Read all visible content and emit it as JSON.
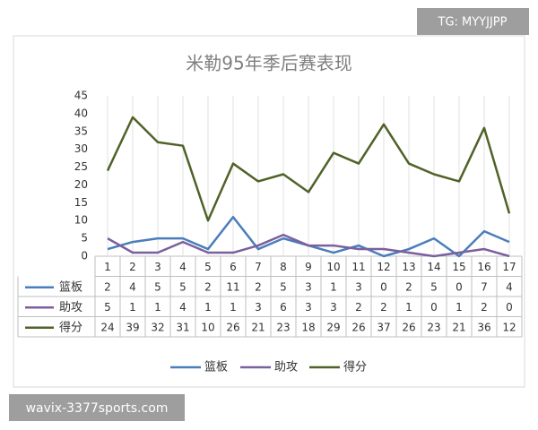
{
  "chart_data": {
    "type": "line",
    "title": "米勒95年季后赛表现",
    "categories": [
      "1",
      "2",
      "3",
      "4",
      "5",
      "6",
      "7",
      "8",
      "9",
      "10",
      "11",
      "12",
      "13",
      "14",
      "15",
      "16",
      "17"
    ],
    "series": [
      {
        "name": "篮板",
        "color": "#4a7ebb",
        "values": [
          2,
          4,
          5,
          5,
          2,
          11,
          2,
          5,
          3,
          1,
          3,
          0,
          2,
          5,
          0,
          7,
          4
        ]
      },
      {
        "name": "助攻",
        "color": "#7b5f9e",
        "values": [
          5,
          1,
          1,
          4,
          1,
          1,
          3,
          6,
          3,
          3,
          2,
          2,
          1,
          0,
          1,
          2,
          0
        ]
      },
      {
        "name": "得分",
        "color": "#4f6228",
        "values": [
          24,
          39,
          32,
          31,
          10,
          26,
          21,
          23,
          18,
          29,
          26,
          37,
          26,
          23,
          21,
          36,
          12
        ]
      }
    ],
    "ylim": [
      0,
      45
    ],
    "yticks": [
      0,
      5,
      10,
      15,
      20,
      25,
      30,
      35,
      40,
      45
    ],
    "grid": true
  },
  "watermarks": {
    "top_right": "TG: MYYJJPP",
    "bottom_left": "wavix-3377sports.com"
  }
}
